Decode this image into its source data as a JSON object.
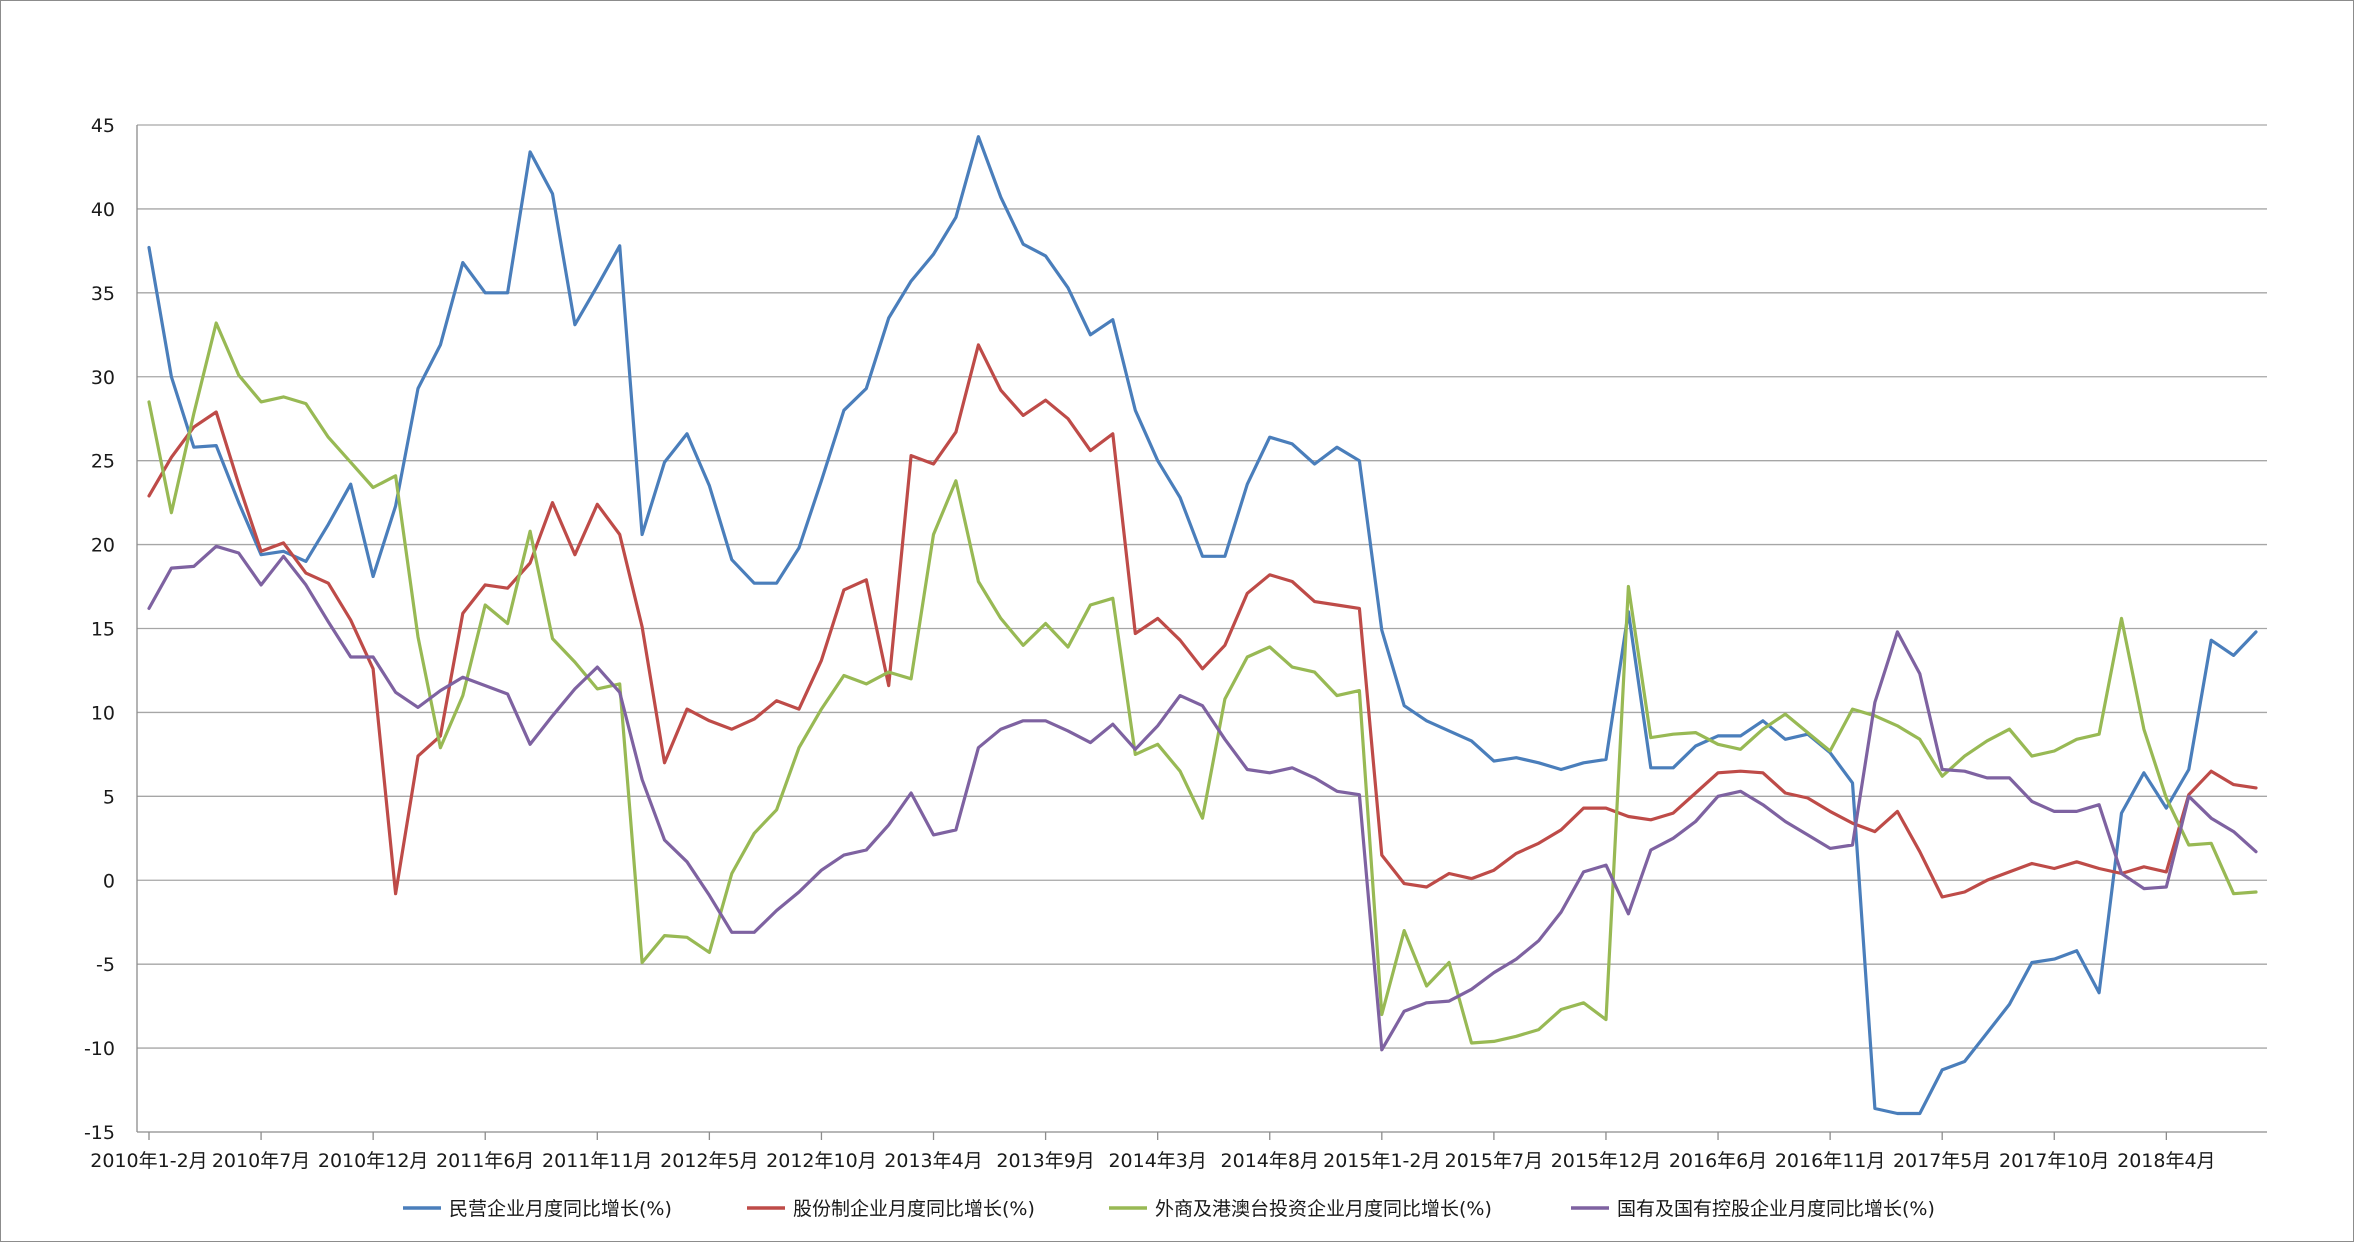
{
  "chart_data": {
    "type": "line",
    "title": "",
    "xlabel": "",
    "ylabel": "",
    "ylim": [
      -15,
      45
    ],
    "yticks": [
      45,
      40,
      35,
      30,
      25,
      20,
      15,
      10,
      5,
      0,
      -5,
      -10,
      -15
    ],
    "grid": true,
    "legend_position": "bottom",
    "x_tick_labels": [
      {
        "label": "2010年1-2月",
        "index": 0
      },
      {
        "label": "2010年7月",
        "index": 5
      },
      {
        "label": "2010年12月",
        "index": 10
      },
      {
        "label": "2011年6月",
        "index": 15
      },
      {
        "label": "2011年11月",
        "index": 20
      },
      {
        "label": "2012年5月",
        "index": 25
      },
      {
        "label": "2012年10月",
        "index": 30
      },
      {
        "label": "2013年4月",
        "index": 35
      },
      {
        "label": "2013年9月",
        "index": 40
      },
      {
        "label": "2014年3月",
        "index": 45
      },
      {
        "label": "2014年8月",
        "index": 50
      },
      {
        "label": "2015年1-2月",
        "index": 55
      },
      {
        "label": "2015年7月",
        "index": 60
      },
      {
        "label": "2015年12月",
        "index": 65
      },
      {
        "label": "2016年6月",
        "index": 70
      },
      {
        "label": "2016年11月",
        "index": 75
      },
      {
        "label": "2017年5月",
        "index": 80
      },
      {
        "label": "2017年10月",
        "index": 85
      },
      {
        "label": "2018年4月",
        "index": 90
      }
    ],
    "series": [
      {
        "name": "民营企业月度同比增长(%)",
        "color": "#4a7ebb",
        "values": [
          37.7,
          30.0,
          25.8,
          25.9,
          22.5,
          19.4,
          19.6,
          19.0,
          21.2,
          23.6,
          18.1,
          22.3,
          29.3,
          31.9,
          36.8,
          35.0,
          35.0,
          43.4,
          40.9,
          33.1,
          35.4,
          37.8,
          20.6,
          24.9,
          26.6,
          23.5,
          19.1,
          17.7,
          17.7,
          19.8,
          23.8,
          28.0,
          29.3,
          33.5,
          35.7,
          37.3,
          39.5,
          44.3,
          40.7,
          37.9,
          37.2,
          35.3,
          32.5,
          33.4,
          28.0,
          25.0,
          22.8,
          19.3,
          19.3,
          23.6,
          26.4,
          26.0,
          24.8,
          25.8,
          25.0,
          14.9,
          10.4,
          9.5,
          8.9,
          8.3,
          7.1,
          7.3,
          7.0,
          6.6,
          7.0,
          7.2,
          16.0,
          6.7,
          6.7,
          8.0,
          8.6,
          8.6,
          9.5,
          8.4,
          8.7,
          7.6,
          5.8,
          -13.6,
          -13.9,
          -13.9,
          -11.3,
          -10.8,
          -9.1,
          -7.4,
          -4.9,
          -4.7,
          -4.2,
          -6.7,
          4.0,
          6.4,
          4.3,
          6.6,
          14.3,
          13.4,
          14.8
        ]
      },
      {
        "name": "股份制企业月度同比增长(%)",
        "color": "#be4b48",
        "values": [
          22.9,
          25.2,
          27.0,
          27.9,
          23.6,
          19.6,
          20.1,
          18.3,
          17.7,
          15.5,
          12.6,
          -0.8,
          7.4,
          8.6,
          15.9,
          17.6,
          17.4,
          18.9,
          22.5,
          19.4,
          22.4,
          20.6,
          15.1,
          7.0,
          10.2,
          9.5,
          9.0,
          9.6,
          10.7,
          10.2,
          13.1,
          17.3,
          17.9,
          11.6,
          25.3,
          24.8,
          26.7,
          31.9,
          29.2,
          27.7,
          28.6,
          27.5,
          25.6,
          26.6,
          14.7,
          15.6,
          14.3,
          12.6,
          14.0,
          17.1,
          18.2,
          17.8,
          16.6,
          16.4,
          16.2,
          1.5,
          -0.2,
          -0.4,
          0.4,
          0.1,
          0.6,
          1.6,
          2.2,
          3.0,
          4.3,
          4.3,
          3.8,
          3.6,
          4.0,
          5.2,
          6.4,
          6.5,
          6.4,
          5.2,
          4.9,
          4.1,
          3.4,
          2.9,
          4.1,
          1.7,
          -1.0,
          -0.7,
          0.0,
          0.5,
          1.0,
          0.7,
          1.1,
          0.7,
          0.4,
          0.8,
          0.5,
          5.1,
          6.5,
          5.7,
          5.5
        ]
      },
      {
        "name": "外商及港澳台投资企业月度同比增长(%)",
        "color": "#98b954",
        "values": [
          28.5,
          21.9,
          27.8,
          33.2,
          30.1,
          28.5,
          28.8,
          28.4,
          26.4,
          24.9,
          23.4,
          24.1,
          14.5,
          7.9,
          11.0,
          16.4,
          15.3,
          20.8,
          14.4,
          13.0,
          11.4,
          11.7,
          -4.9,
          -3.3,
          -3.4,
          -4.3,
          0.4,
          2.8,
          4.2,
          7.9,
          10.2,
          12.2,
          11.7,
          12.4,
          12.0,
          20.6,
          23.8,
          17.8,
          15.6,
          14.0,
          15.3,
          13.9,
          16.4,
          16.8,
          7.5,
          8.1,
          6.5,
          3.7,
          10.8,
          13.3,
          13.9,
          12.7,
          12.4,
          11.0,
          11.3,
          -8.0,
          -3.0,
          -6.3,
          -4.9,
          -9.7,
          -9.6,
          -9.3,
          -8.9,
          -7.7,
          -7.3,
          -8.3,
          17.5,
          8.5,
          8.7,
          8.8,
          8.1,
          7.8,
          9.0,
          9.9,
          8.8,
          7.7,
          10.2,
          9.8,
          9.2,
          8.4,
          6.2,
          7.4,
          8.3,
          9.0,
          7.4,
          7.7,
          8.4,
          8.7,
          15.6,
          9.0,
          4.9,
          2.1,
          2.2,
          -0.8,
          -0.7
        ]
      },
      {
        "name": "国有及国有控股企业月度同比增长(%)",
        "color": "#7e62a1",
        "values": [
          16.2,
          18.6,
          18.7,
          19.9,
          19.5,
          17.6,
          19.3,
          17.6,
          15.4,
          13.3,
          13.3,
          11.2,
          10.3,
          11.3,
          12.1,
          11.6,
          11.1,
          8.1,
          9.8,
          11.4,
          12.7,
          11.2,
          6.0,
          2.4,
          1.1,
          -0.9,
          -3.1,
          -3.1,
          -1.8,
          -0.7,
          0.6,
          1.5,
          1.8,
          3.3,
          5.2,
          2.7,
          3.0,
          7.9,
          9.0,
          9.5,
          9.5,
          8.9,
          8.2,
          9.3,
          7.8,
          9.2,
          11.0,
          10.4,
          8.4,
          6.6,
          6.4,
          6.7,
          6.1,
          5.3,
          5.1,
          -10.1,
          -7.8,
          -7.3,
          -7.2,
          -6.5,
          -5.5,
          -4.7,
          -3.6,
          -1.9,
          0.5,
          0.9,
          -2.0,
          1.8,
          2.5,
          3.5,
          5.0,
          5.3,
          4.5,
          3.5,
          2.7,
          1.9,
          2.1,
          10.6,
          14.8,
          12.3,
          6.6,
          6.5,
          6.1,
          6.1,
          4.7,
          4.1,
          4.1,
          4.5,
          0.4,
          -0.5,
          -0.4,
          5.0,
          3.7,
          2.9,
          1.7
        ]
      }
    ]
  }
}
